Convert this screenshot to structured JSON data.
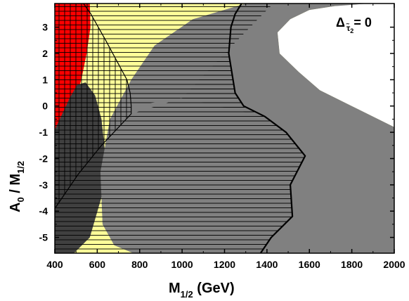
{
  "chart_data": {
    "type": "area",
    "title": "",
    "annotation": {
      "main": "Δ",
      "sub": "τ̃",
      "sub2": "2",
      "rhs": "= 0"
    },
    "xlabel": {
      "main": "M",
      "sub": "1/2",
      "rest": " (GeV)"
    },
    "ylabel": {
      "a": "A",
      "a_sub": "0",
      "mid": " / M",
      "m_sub": "1/2"
    },
    "xlim": [
      400,
      2000
    ],
    "ylim": [
      -5.6,
      3.9
    ],
    "xticks": [
      "400",
      "600",
      "800",
      "1000",
      "1200",
      "1400",
      "1600",
      "1800",
      "2000"
    ],
    "yticks": [
      "-5",
      "-4",
      "-3",
      "-2",
      "-1",
      "0",
      "1",
      "2",
      "3"
    ],
    "colors": {
      "yellow": "#ffff99",
      "red": "#ff0000",
      "dark_gray": "#404040",
      "gray": "#808080",
      "white": "#ffffff",
      "line": "#000000"
    },
    "regions": [
      {
        "id": "red-region",
        "fill": "red",
        "points": [
          [
            400,
            3.9
          ],
          [
            565,
            3.9
          ],
          [
            568,
            3.0
          ],
          [
            550,
            2.0
          ],
          [
            525,
            1.0
          ],
          [
            488,
            0.0
          ],
          [
            440,
            -0.5
          ],
          [
            400,
            -0.9
          ]
        ]
      },
      {
        "id": "dark-gray-region",
        "fill": "dark_gray",
        "points": [
          [
            400,
            -5.6
          ],
          [
            490,
            -5.6
          ],
          [
            565,
            -5.0
          ],
          [
            630,
            -3.2
          ],
          [
            640,
            -2.0
          ],
          [
            620,
            -0.5
          ],
          [
            590,
            0.4
          ],
          [
            545,
            0.9
          ],
          [
            505,
            0.8
          ],
          [
            470,
            0.3
          ],
          [
            435,
            -0.3
          ],
          [
            400,
            -0.9
          ]
        ]
      },
      {
        "id": "gray-region",
        "fill": "gray",
        "points": [
          [
            770,
            -5.6
          ],
          [
            2000,
            -5.6
          ],
          [
            2000,
            -0.8
          ],
          [
            1800,
            0.0
          ],
          [
            1650,
            0.6
          ],
          [
            1550,
            1.3
          ],
          [
            1460,
            2.0
          ],
          [
            1450,
            2.8
          ],
          [
            1510,
            3.3
          ],
          [
            1600,
            3.65
          ],
          [
            1720,
            3.8
          ],
          [
            1900,
            3.86
          ],
          [
            2000,
            3.86
          ],
          [
            2000,
            3.9
          ],
          [
            1300,
            3.9
          ],
          [
            1050,
            3.3
          ],
          [
            870,
            2.3
          ],
          [
            760,
            1.0
          ],
          [
            660,
            -0.5
          ],
          [
            615,
            -2.5
          ],
          [
            625,
            -4.5
          ],
          [
            680,
            -5.3
          ]
        ]
      },
      {
        "id": "white-region",
        "fill": "white",
        "points": [
          [
            1880,
            3.9
          ],
          [
            2000,
            3.9
          ],
          [
            2000,
            -0.8
          ],
          [
            1800,
            0.0
          ],
          [
            1650,
            0.6
          ],
          [
            1550,
            1.3
          ],
          [
            1460,
            2.0
          ],
          [
            1450,
            2.8
          ],
          [
            1510,
            3.3
          ],
          [
            1600,
            3.65
          ],
          [
            1720,
            3.8
          ]
        ]
      }
    ],
    "hatched_regions": [
      {
        "id": "lower-hatch",
        "pattern": "horizontal",
        "points": [
          [
            400,
            -5.6
          ],
          [
            1370,
            -5.6
          ],
          [
            1420,
            -5.0
          ],
          [
            1520,
            -4.2
          ],
          [
            1510,
            -3.0
          ],
          [
            1580,
            -1.9
          ],
          [
            1490,
            -1.0
          ],
          [
            1390,
            -0.4
          ],
          [
            1290,
            0.0
          ],
          [
            1250,
            0.5
          ],
          [
            1240,
            1.0
          ],
          [
            1220,
            2.0
          ],
          [
            1230,
            3.0
          ],
          [
            1250,
            3.5
          ],
          [
            1280,
            3.9
          ],
          [
            1430,
            3.9
          ],
          [
            1200,
            2.0
          ],
          [
            1000,
            0.3
          ],
          [
            760,
            -0.3
          ],
          [
            620,
            -1.5
          ],
          [
            510,
            -2.6
          ],
          [
            400,
            -3.9
          ]
        ]
      },
      {
        "id": "upper-hatch",
        "pattern": "horizontal",
        "points": [
          [
            565,
            3.9
          ],
          [
            1280,
            3.9
          ],
          [
            1250,
            3.5
          ],
          [
            1230,
            3.0
          ],
          [
            1220,
            2.0
          ],
          [
            1240,
            1.0
          ],
          [
            1250,
            0.5
          ],
          [
            1290,
            0.0
          ],
          [
            1390,
            -0.4
          ],
          [
            1000,
            0.3
          ],
          [
            760,
            0.0
          ],
          [
            755,
            0.5
          ],
          [
            740,
            1.0
          ],
          [
            640,
            2.5
          ],
          [
            570,
            3.5
          ]
        ]
      },
      {
        "id": "grid-hatch",
        "pattern": "grid",
        "points": [
          [
            400,
            -3.9
          ],
          [
            510,
            -2.6
          ],
          [
            620,
            -1.5
          ],
          [
            760,
            -0.3
          ],
          [
            760,
            0.0
          ],
          [
            755,
            0.5
          ],
          [
            740,
            1.0
          ],
          [
            640,
            2.5
          ],
          [
            570,
            3.5
          ],
          [
            565,
            3.9
          ],
          [
            400,
            3.9
          ]
        ]
      }
    ],
    "boundary_lines": [
      {
        "id": "thick-boundary",
        "width": 2.2,
        "points": [
          [
            1370,
            -5.6
          ],
          [
            1420,
            -5.0
          ],
          [
            1520,
            -4.2
          ],
          [
            1510,
            -3.0
          ],
          [
            1580,
            -1.9
          ],
          [
            1490,
            -1.0
          ],
          [
            1390,
            -0.4
          ],
          [
            1290,
            0.0
          ],
          [
            1250,
            0.5
          ],
          [
            1240,
            1.0
          ],
          [
            1220,
            2.0
          ],
          [
            1230,
            3.0
          ],
          [
            1250,
            3.5
          ],
          [
            1280,
            3.9
          ]
        ]
      },
      {
        "id": "thin-boundary-left",
        "width": 1.2,
        "points": [
          [
            400,
            -3.9
          ],
          [
            510,
            -2.6
          ],
          [
            620,
            -1.5
          ],
          [
            760,
            -0.3
          ],
          [
            760,
            0.0
          ],
          [
            755,
            0.5
          ],
          [
            740,
            1.0
          ],
          [
            640,
            2.5
          ],
          [
            570,
            3.5
          ],
          [
            535,
            3.9
          ]
        ]
      }
    ]
  }
}
